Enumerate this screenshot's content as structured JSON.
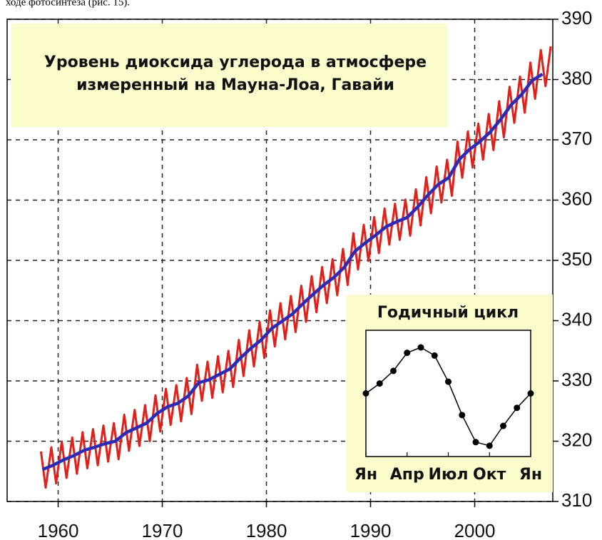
{
  "caption_fragment": "ходе фотосинтеза (рис. 15).",
  "chart_data": [
    {
      "type": "line",
      "title": [
        "Уровень диоксида углерода в атмосфере",
        "измеренный на Мауна-Лоа, Гавайи"
      ],
      "xlim": [
        1955.1,
        2007.5
      ],
      "xticks": [
        1960,
        1970,
        1980,
        1990,
        2000
      ],
      "ylim": [
        310,
        390
      ],
      "yticks": [
        310,
        320,
        330,
        340,
        350,
        360,
        370,
        380,
        390
      ],
      "grid": true,
      "series": [
        {
          "color": "#e0201b",
          "x": [
            1958.35,
            1958.8,
            1959.35,
            1959.8,
            1960.35,
            1960.8,
            1961.35,
            1961.8,
            1962.35,
            1962.8,
            1963.35,
            1963.8,
            1964.35,
            1964.8,
            1965.35,
            1965.8,
            1966.35,
            1966.8,
            1967.35,
            1967.8,
            1968.35,
            1968.8,
            1969.35,
            1969.8,
            1970.35,
            1970.8,
            1971.35,
            1971.8,
            1972.35,
            1972.8,
            1973.35,
            1973.8,
            1974.35,
            1974.8,
            1975.35,
            1975.8,
            1976.35,
            1976.8,
            1977.35,
            1977.8,
            1978.35,
            1978.8,
            1979.35,
            1979.8,
            1980.35,
            1980.8,
            1981.35,
            1981.8,
            1982.35,
            1982.8,
            1983.35,
            1983.8,
            1984.35,
            1984.8,
            1985.35,
            1985.8,
            1986.35,
            1986.8,
            1987.35,
            1987.8,
            1988.35,
            1988.8,
            1989.35,
            1989.8,
            1990.35,
            1990.8,
            1991.35,
            1991.8,
            1992.35,
            1992.8,
            1993.35,
            1993.8,
            1994.35,
            1994.8,
            1995.35,
            1995.8,
            1996.35,
            1996.8,
            1997.35,
            1997.8,
            1998.35,
            1998.8,
            1999.35,
            1999.8,
            2000.35,
            2000.8,
            2001.35,
            2001.8,
            2002.35,
            2002.8,
            2003.35,
            2003.8,
            2004.35,
            2004.8,
            2005.35,
            2005.8,
            2006.35,
            2006.8,
            2007.3
          ],
          "values": [
            318.3,
            312.3,
            319.0,
            313.0,
            319.9,
            313.9,
            320.6,
            314.6,
            321.5,
            315.5,
            322.0,
            316.0,
            322.6,
            316.6,
            323.0,
            317.0,
            324.4,
            318.4,
            325.2,
            319.2,
            326.0,
            320.0,
            327.6,
            321.6,
            328.7,
            322.7,
            329.3,
            323.3,
            330.5,
            324.5,
            332.7,
            326.7,
            333.2,
            327.2,
            334.1,
            328.1,
            335.0,
            329.0,
            336.8,
            330.8,
            338.4,
            332.4,
            339.8,
            333.8,
            341.7,
            335.7,
            342.9,
            336.9,
            344.1,
            338.1,
            345.8,
            339.8,
            347.4,
            341.4,
            348.9,
            342.9,
            350.2,
            344.2,
            351.9,
            345.9,
            354.5,
            348.5,
            355.9,
            349.9,
            357.2,
            351.2,
            358.6,
            352.6,
            359.4,
            353.4,
            360.1,
            354.1,
            361.8,
            355.8,
            363.8,
            357.8,
            365.6,
            359.6,
            366.7,
            360.7,
            369.7,
            363.7,
            371.4,
            365.4,
            372.7,
            366.7,
            374.3,
            368.3,
            376.4,
            370.4,
            378.8,
            372.8,
            380.5,
            374.5,
            382.8,
            376.8,
            384.9,
            378.9,
            385.5
          ]
        },
        {
          "color": "#2b2bb8",
          "x": [
            1958.5,
            1959.5,
            1960.5,
            1961.5,
            1962.5,
            1963.5,
            1964.5,
            1965.5,
            1966.5,
            1967.5,
            1968.5,
            1969.5,
            1970.5,
            1971.5,
            1972.5,
            1973.5,
            1974.5,
            1975.5,
            1976.5,
            1977.5,
            1978.5,
            1979.5,
            1980.5,
            1981.5,
            1982.5,
            1983.5,
            1984.5,
            1985.5,
            1986.5,
            1987.5,
            1988.5,
            1989.5,
            1990.5,
            1991.5,
            1992.5,
            1993.5,
            1994.5,
            1995.5,
            1996.5,
            1997.5,
            1998.5,
            1999.5,
            2000.5,
            2001.5,
            2002.5,
            2003.5,
            2004.5,
            2005.5,
            2006.5
          ],
          "values": [
            315.3,
            316.0,
            316.9,
            317.6,
            318.5,
            319.0,
            319.6,
            320.0,
            321.4,
            322.2,
            323.0,
            324.6,
            325.7,
            326.3,
            327.5,
            329.7,
            330.2,
            331.1,
            332.0,
            333.8,
            335.4,
            336.8,
            338.7,
            339.9,
            341.1,
            342.8,
            344.4,
            345.9,
            347.2,
            348.9,
            351.5,
            352.9,
            354.2,
            355.6,
            356.4,
            357.1,
            358.8,
            360.8,
            362.6,
            363.7,
            366.7,
            368.4,
            369.7,
            371.3,
            373.4,
            375.8,
            377.5,
            379.8,
            380.9
          ]
        }
      ]
    },
    {
      "type": "line",
      "title": "Годичный цикл",
      "x": [
        0,
        1,
        2,
        3,
        4,
        5,
        6,
        7,
        8,
        9,
        10,
        11,
        12
      ],
      "values": [
        0.0,
        1.1,
        2.5,
        4.5,
        5.1,
        4.2,
        1.3,
        -2.4,
        -5.4,
        -5.8,
        -3.6,
        -1.6,
        0.0
      ],
      "color": "#000000",
      "markers": true,
      "xlim": [
        0,
        12
      ],
      "xticks": [
        {
          "value": 0,
          "label": "Ян"
        },
        {
          "value": 3,
          "label": "Апр"
        },
        {
          "value": 6,
          "label": "Июл"
        },
        {
          "value": 9,
          "label": "Окт"
        },
        {
          "value": 12,
          "label": "Ян"
        }
      ],
      "ylim": [
        -7,
        7
      ]
    }
  ]
}
